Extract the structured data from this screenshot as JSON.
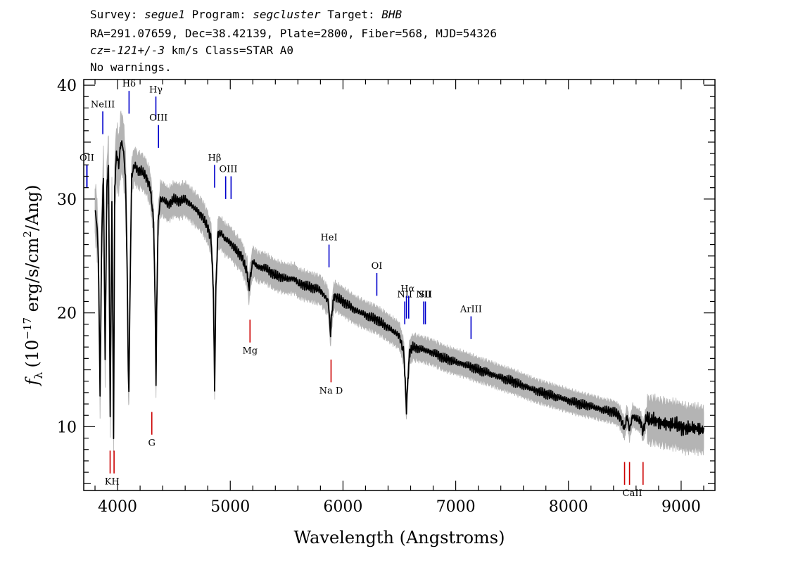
{
  "header": {
    "survey_label": "Survey:",
    "survey": "segue1",
    "program_label": "Program:",
    "program": "segcluster",
    "target_label": "Target:",
    "target": "BHB",
    "line2": "RA=291.07659, Dec=38.42139, Plate=2800, Fiber=568, MJD=54326",
    "cz_label": "cz=",
    "cz_value": "-121+/-3",
    "cz_rest": "km/s Class=STAR A0",
    "line4": "No warnings."
  },
  "chart_data": {
    "type": "line",
    "title": "",
    "xlabel": "Wavelength (Angstroms)",
    "ylabel": "f_λ (10^-17 erg/s/cm^2/Ang)",
    "ylabel_parts": {
      "f": "f",
      "sub": "λ",
      "open": "(10",
      "exp": "−17",
      "mid": " erg/s/cm",
      "exp2": "2",
      "close": "/Ang)"
    },
    "xlim": [
      3700,
      9300
    ],
    "ylim": [
      4.4,
      40.5
    ],
    "x_ticks": [
      4000,
      5000,
      6000,
      7000,
      8000,
      9000
    ],
    "x_tick_labels": [
      "4000",
      "5000",
      "6000",
      "7000",
      "8000",
      "9000"
    ],
    "y_ticks": [
      10,
      20,
      30,
      40
    ],
    "y_tick_labels": [
      "10",
      "20",
      "30",
      "40"
    ],
    "grid": false,
    "series": [
      {
        "color": "#000000",
        "error_color": "#b4b4b4",
        "x": [
          3800,
          3815,
          3830,
          3845,
          3860,
          3875,
          3890,
          3905,
          3920,
          3935,
          3950,
          3965,
          3975,
          3990,
          4010,
          4030,
          4050,
          4070,
          4085,
          4095,
          4101,
          4108,
          4125,
          4150,
          4180,
          4210,
          4250,
          4290,
          4320,
          4335,
          4341,
          4347,
          4360,
          4380,
          4400,
          4450,
          4500,
          4550,
          4600,
          4650,
          4700,
          4750,
          4800,
          4830,
          4850,
          4861,
          4872,
          4890,
          4920,
          4950,
          5000,
          5050,
          5100,
          5150,
          5165,
          5175,
          5200,
          5250,
          5300,
          5400,
          5500,
          5577,
          5600,
          5700,
          5800,
          5870,
          5890,
          5896,
          5920,
          6000,
          6100,
          6200,
          6300,
          6400,
          6500,
          6540,
          6556,
          6563,
          6572,
          6590,
          6620,
          6700,
          6800,
          6900,
          7000,
          7100,
          7200,
          7300,
          7400,
          7500,
          7600,
          7700,
          7800,
          7900,
          8000,
          8100,
          8200,
          8300,
          8400,
          8450,
          8498,
          8520,
          8542,
          8570,
          8600,
          8640,
          8662,
          8690,
          8720,
          8760,
          8800,
          8850,
          8900,
          8950,
          9000,
          9050,
          9100,
          9150,
          9200
        ],
        "y": [
          29.0,
          28.0,
          25.0,
          13.0,
          27.0,
          32.0,
          16.0,
          31.0,
          33.0,
          11.0,
          30.0,
          9.3,
          31.0,
          34.0,
          33.0,
          35.0,
          34.5,
          32.0,
          24.0,
          15.0,
          13.0,
          20.0,
          32.0,
          33.0,
          32.5,
          32.5,
          32.0,
          31.0,
          28.0,
          20.0,
          13.5,
          20.0,
          28.0,
          30.0,
          30.0,
          29.5,
          30.0,
          29.8,
          30.0,
          29.5,
          29.0,
          28.5,
          27.5,
          26.5,
          22.0,
          13.3,
          22.0,
          27.0,
          27.0,
          26.5,
          26.2,
          25.5,
          25.0,
          23.5,
          22.0,
          23.0,
          24.5,
          24.0,
          24.0,
          23.3,
          23.0,
          23.0,
          22.6,
          22.3,
          22.0,
          21.0,
          18.0,
          19.5,
          21.5,
          21.0,
          20.3,
          19.8,
          19.4,
          18.7,
          18.0,
          16.5,
          13.0,
          11.5,
          13.5,
          16.5,
          17.0,
          16.8,
          16.5,
          16.0,
          15.7,
          15.4,
          15.0,
          14.7,
          14.3,
          14.0,
          13.6,
          13.2,
          12.9,
          12.6,
          12.3,
          12.0,
          11.8,
          11.5,
          11.3,
          11.0,
          9.8,
          11.0,
          9.7,
          11.0,
          10.7,
          10.5,
          9.5,
          10.8,
          10.5,
          10.6,
          10.4,
          10.3,
          10.2,
          10.2,
          10.0,
          9.8,
          9.9,
          9.8,
          9.7
        ]
      }
    ],
    "line_markers": [
      {
        "label": "OII",
        "x": 3727,
        "y": 31.0,
        "color": "#0000cc",
        "pos": "above",
        "x2": 3729
      },
      {
        "label": "NeIII",
        "x": 3869,
        "y": 35.7,
        "color": "#0000cc",
        "pos": "above"
      },
      {
        "label": "Hδ",
        "x": 4102,
        "y": 37.5,
        "color": "#0000cc",
        "pos": "above"
      },
      {
        "label": "Hγ",
        "x": 4340,
        "y": 37.0,
        "color": "#0000cc",
        "pos": "above"
      },
      {
        "label": "OIII",
        "x": 4363,
        "y": 34.5,
        "color": "#0000cc",
        "pos": "above"
      },
      {
        "label": "Hβ",
        "x": 4861,
        "y": 31.0,
        "color": "#0000cc",
        "pos": "above"
      },
      {
        "label": "OIII",
        "x": 4959,
        "y": 30.0,
        "color": "#0000cc",
        "pos": "above",
        "x2": 5007
      },
      {
        "label": "HeI",
        "x": 5876,
        "y": 24.0,
        "color": "#0000cc",
        "pos": "above"
      },
      {
        "label": "OI",
        "x": 6300,
        "y": 21.5,
        "color": "#0000cc",
        "pos": "above"
      },
      {
        "label": "NII",
        "x": 6548,
        "y": 19.0,
        "color": "#0000cc",
        "pos": "above"
      },
      {
        "label": "Hα",
        "x": 6563,
        "y": 19.5,
        "color": "#0000cc",
        "pos": "above",
        "x2": 6583
      },
      {
        "label": "NII",
        "x": 6716,
        "y": 19.0,
        "color": "#0000cc",
        "pos": "above"
      },
      {
        "label": "SII",
        "x": 6731,
        "y": 19.0,
        "color": "#0000cc",
        "pos": "above"
      },
      {
        "label": "ArIII",
        "x": 7136,
        "y": 17.7,
        "color": "#0000cc",
        "pos": "above"
      },
      {
        "label": "KH",
        "x": 3934,
        "y": 7.9,
        "color": "#cc0000",
        "pos": "below",
        "x2": 3969
      },
      {
        "label": "G",
        "x": 4304,
        "y": 11.3,
        "color": "#cc0000",
        "pos": "below"
      },
      {
        "label": "Mg",
        "x": 5175,
        "y": 19.4,
        "color": "#cc0000",
        "pos": "below"
      },
      {
        "label": "Na D",
        "x": 5894,
        "y": 15.9,
        "color": "#cc0000",
        "pos": "below"
      },
      {
        "label": "CaII",
        "x": 8498,
        "y": 6.9,
        "color": "#cc0000",
        "pos": "below",
        "x2": 8542,
        "x3": 8662
      }
    ]
  }
}
